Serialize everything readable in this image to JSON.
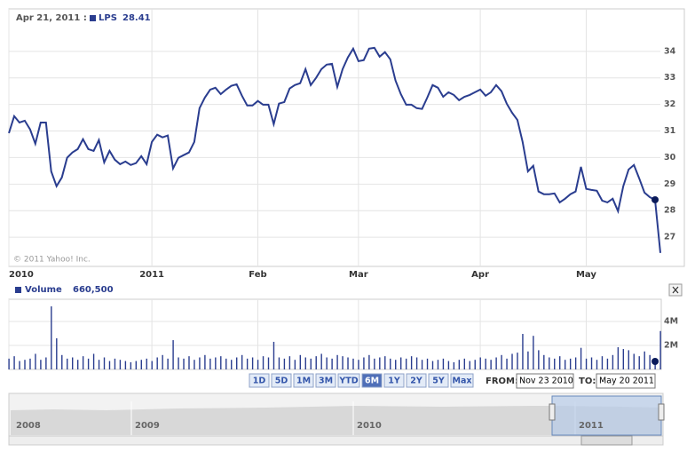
{
  "chart_data": [
    {
      "type": "line",
      "highlight": {
        "label": "Apr 21, 2011 :",
        "value": 28.41
      },
      "series": [
        {
          "name": "LPS",
          "color": "#2a3d8f",
          "values": [
            30.92,
            31.56,
            31.32,
            31.39,
            31.06,
            30.52,
            31.32,
            31.32,
            29.48,
            28.92,
            29.25,
            29.99,
            30.19,
            30.32,
            30.69,
            30.32,
            30.25,
            30.66,
            29.82,
            30.25,
            29.92,
            29.75,
            29.85,
            29.72,
            29.79,
            30.05,
            29.75,
            30.59,
            30.86,
            30.76,
            30.83,
            29.59,
            29.99,
            30.09,
            30.19,
            30.59,
            31.86,
            32.26,
            32.56,
            32.63,
            32.39,
            32.56,
            32.7,
            32.76,
            32.33,
            31.96,
            31.96,
            32.13,
            31.99,
            31.99,
            31.26,
            32.03,
            32.09,
            32.6,
            32.73,
            32.8,
            33.33,
            32.73,
            33.0,
            33.33,
            33.5,
            33.53,
            32.66,
            33.33,
            33.77,
            34.1,
            33.63,
            33.67,
            34.1,
            34.13,
            33.8,
            33.97,
            33.7,
            32.9,
            32.39,
            31.99,
            31.99,
            31.86,
            31.83,
            32.26,
            32.73,
            32.63,
            32.29,
            32.46,
            32.36,
            32.16,
            32.29,
            32.36,
            32.46,
            32.56,
            32.33,
            32.46,
            32.73,
            32.5,
            32.03,
            31.69,
            31.42,
            30.59,
            29.48,
            29.69,
            28.72,
            28.62,
            28.62,
            28.65,
            28.31,
            28.45,
            28.62,
            28.72,
            29.65,
            28.82,
            28.78,
            28.75,
            28.38,
            28.31,
            28.45,
            27.98,
            28.92,
            29.55,
            29.72,
            29.22,
            28.68,
            28.51,
            28.41,
            26.41
          ]
        }
      ],
      "xlim": [
        0,
        123
      ],
      "xticks": [
        {
          "value": 0,
          "label": "2010"
        },
        {
          "value": 27,
          "label": "2011"
        },
        {
          "value": 47,
          "label": "Feb"
        },
        {
          "value": 66,
          "label": "Mar"
        },
        {
          "value": 89,
          "label": "Apr"
        },
        {
          "value": 109,
          "label": "May"
        }
      ],
      "ylim": [
        25.9,
        35.6
      ],
      "yticks": [
        27,
        28,
        29,
        30,
        31,
        32,
        33,
        34
      ],
      "grid": true,
      "copyright": "© 2011 Yahoo! Inc."
    },
    {
      "type": "bar",
      "highlight": {
        "value": 660500,
        "value_label": "660,500"
      },
      "series": [
        {
          "name": "Volume",
          "color": "#2a3d8f",
          "values": [
            900000,
            1100000,
            700000,
            800000,
            900000,
            1300000,
            800000,
            1000000,
            5260000,
            2600000,
            1200000,
            900000,
            1000000,
            800000,
            1100000,
            900000,
            1300000,
            800000,
            1000000,
            700000,
            900000,
            800000,
            700000,
            600000,
            700000,
            800000,
            900000,
            700000,
            1000000,
            1200000,
            900000,
            2440000,
            1000000,
            900000,
            1100000,
            800000,
            1000000,
            1200000,
            900000,
            1000000,
            1100000,
            900000,
            800000,
            1000000,
            1200000,
            900000,
            1000000,
            800000,
            1100000,
            1000000,
            2300000,
            1000000,
            900000,
            1100000,
            800000,
            1200000,
            1000000,
            900000,
            1100000,
            1300000,
            1000000,
            900000,
            1200000,
            1100000,
            1000000,
            900000,
            800000,
            1000000,
            1200000,
            900000,
            1000000,
            1100000,
            900000,
            800000,
            1000000,
            900000,
            1100000,
            1000000,
            800000,
            900000,
            700000,
            800000,
            900000,
            700000,
            600000,
            800000,
            900000,
            700000,
            800000,
            1000000,
            900000,
            800000,
            1000000,
            1200000,
            900000,
            1300000,
            1400000,
            2960000,
            1500000,
            2800000,
            1600000,
            1200000,
            1000000,
            900000,
            1100000,
            800000,
            900000,
            1000000,
            1800000,
            900000,
            1000000,
            800000,
            1100000,
            900000,
            1200000,
            1850000,
            1700000,
            1600000,
            1300000,
            1100000,
            1500000,
            1200000,
            660500,
            3200000
          ]
        }
      ],
      "xlim": [
        0,
        123
      ],
      "ylim": [
        0,
        5850000
      ],
      "yticks": [
        {
          "value": 2000000,
          "label": "2M"
        },
        {
          "value": 4000000,
          "label": "4M"
        }
      ]
    }
  ],
  "controls": {
    "range_buttons": [
      "1D",
      "5D",
      "1M",
      "3M",
      "YTD",
      "6M",
      "1Y",
      "2Y",
      "5Y",
      "Max"
    ],
    "selected": "6M",
    "from_label": "FROM:",
    "from": "Nov 23 2010",
    "to_label": "TO:",
    "to": "May 20 2011",
    "navigator_labels": [
      "2008",
      "2009",
      "2010",
      "2011"
    ]
  }
}
